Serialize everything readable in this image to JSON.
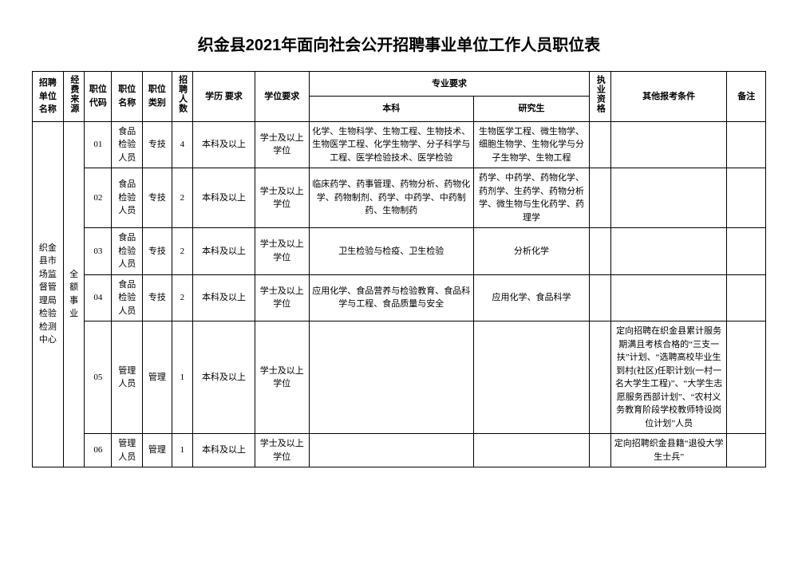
{
  "title": "织金县2021年面向社会公开招聘事业单位工作人员职位表",
  "headers": {
    "unit": "招聘单位名称",
    "fund": "经费来源",
    "code": "职位代码",
    "pname": "职位名称",
    "ptype": "职位类别",
    "count": "招聘人数",
    "edu": "学历\n要求",
    "degree": "学位要求",
    "major": "专业要求",
    "bk": "本科",
    "yjs": "研究生",
    "qual": "执业资格",
    "other": "其他报考条件",
    "note": "备注"
  },
  "unit_name": "织金县市场监督管理局检验检测中心",
  "fund_source": "全额事业",
  "rows": [
    {
      "code": "01",
      "pname": "食品检验人员",
      "ptype": "专技",
      "count": "4",
      "edu": "本科及以上",
      "degree": "学士及以上学位",
      "bk": "化学、生物科学、生物工程、生物技术、生物医学工程、化学生物学、分子科学与工程、医学检验技术、医学检验",
      "yjs": "生物医学工程、微生物学、细胞生物学、生物化学与分子生物学、生物工程",
      "qual": "",
      "other": "",
      "note": ""
    },
    {
      "code": "02",
      "pname": "食品检验人员",
      "ptype": "专技",
      "count": "2",
      "edu": "本科及以上",
      "degree": "学士及以上学位",
      "bk": "临床药学、药事管理、药物分析、药物化学、药物制剂、药学、中药学、中药制药、生物制药",
      "yjs": "药学、中药学、药物化学、药剂学、生药学、药物分析学、微生物与生化药学、药理学",
      "qual": "",
      "other": "",
      "note": ""
    },
    {
      "code": "03",
      "pname": "食品检验人员",
      "ptype": "专技",
      "count": "2",
      "edu": "本科及以上",
      "degree": "学士及以上学位",
      "bk": "卫生检验与检疫、卫生检验",
      "yjs": "分析化学",
      "qual": "",
      "other": "",
      "note": ""
    },
    {
      "code": "04",
      "pname": "食品检验人员",
      "ptype": "专技",
      "count": "2",
      "edu": "本科及以上",
      "degree": "学士及以上学位",
      "bk": "应用化学、食品营养与检验教育、食品科学与工程、食品质量与安全",
      "yjs": "应用化学、食品科学",
      "qual": "",
      "other": "",
      "note": ""
    },
    {
      "code": "05",
      "pname": "管理人员",
      "ptype": "管理",
      "count": "1",
      "edu": "本科及以上",
      "degree": "学士及以上学位",
      "bk": "",
      "yjs": "",
      "qual": "",
      "other": "定向招聘在织金县累计服务期满且考核合格的“三支一扶”计划、“选聘高校毕业生到村(社区)任职计划(一村一名大学生工程)”、“大学生志愿服务西部计划”、“农村义务教育阶段学校教师特设岗位计划”人员",
      "note": ""
    },
    {
      "code": "06",
      "pname": "管理人员",
      "ptype": "管理",
      "count": "1",
      "edu": "本科及以上",
      "degree": "学士及以上学位",
      "bk": "",
      "yjs": "",
      "qual": "",
      "other": "定向招聘织金县籍“退役大学生士兵”",
      "note": ""
    }
  ]
}
